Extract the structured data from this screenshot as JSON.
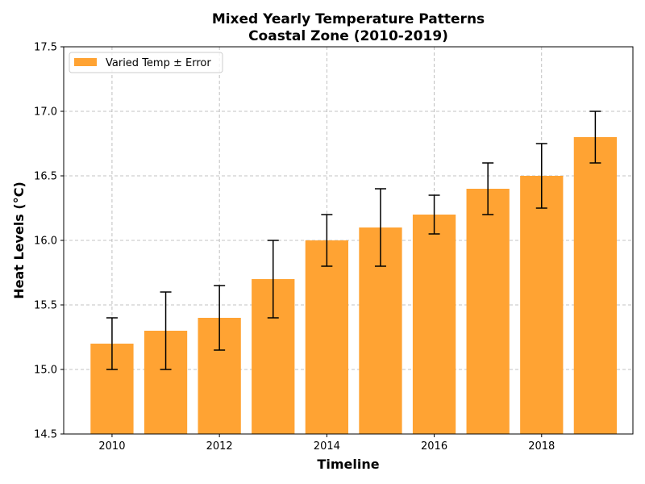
{
  "chart_data": {
    "type": "bar",
    "title": "Mixed Yearly Temperature Patterns",
    "subtitle": "Coastal Zone (2010-2019)",
    "xlabel": "Timeline",
    "ylabel": "Heat Levels (°C)",
    "x": [
      2010,
      2011,
      2012,
      2013,
      2014,
      2015,
      2016,
      2017,
      2018,
      2019
    ],
    "series": [
      {
        "name": "Varied Temp ± Error",
        "values": [
          15.2,
          15.3,
          15.4,
          15.7,
          16.0,
          16.1,
          16.2,
          16.4,
          16.5,
          16.8
        ],
        "errors": [
          0.2,
          0.3,
          0.25,
          0.3,
          0.2,
          0.3,
          0.15,
          0.2,
          0.25,
          0.2
        ]
      }
    ],
    "xlim": [
      2009.1,
      2019.7
    ],
    "ylim": [
      14.5,
      17.5
    ],
    "xticks": [
      2010,
      2012,
      2014,
      2016,
      2018
    ],
    "yticks": [
      14.5,
      15.0,
      15.5,
      16.0,
      16.5,
      17.0,
      17.5
    ],
    "xtick_labels": [
      "2010",
      "2012",
      "2014",
      "2016",
      "2018"
    ],
    "ytick_labels": [
      "14.5",
      "15.0",
      "15.5",
      "16.0",
      "16.5",
      "17.0",
      "17.5"
    ],
    "grid": true,
    "legend_position": "top-left",
    "bar_color": "#FFA333",
    "error_color": "#000000"
  }
}
